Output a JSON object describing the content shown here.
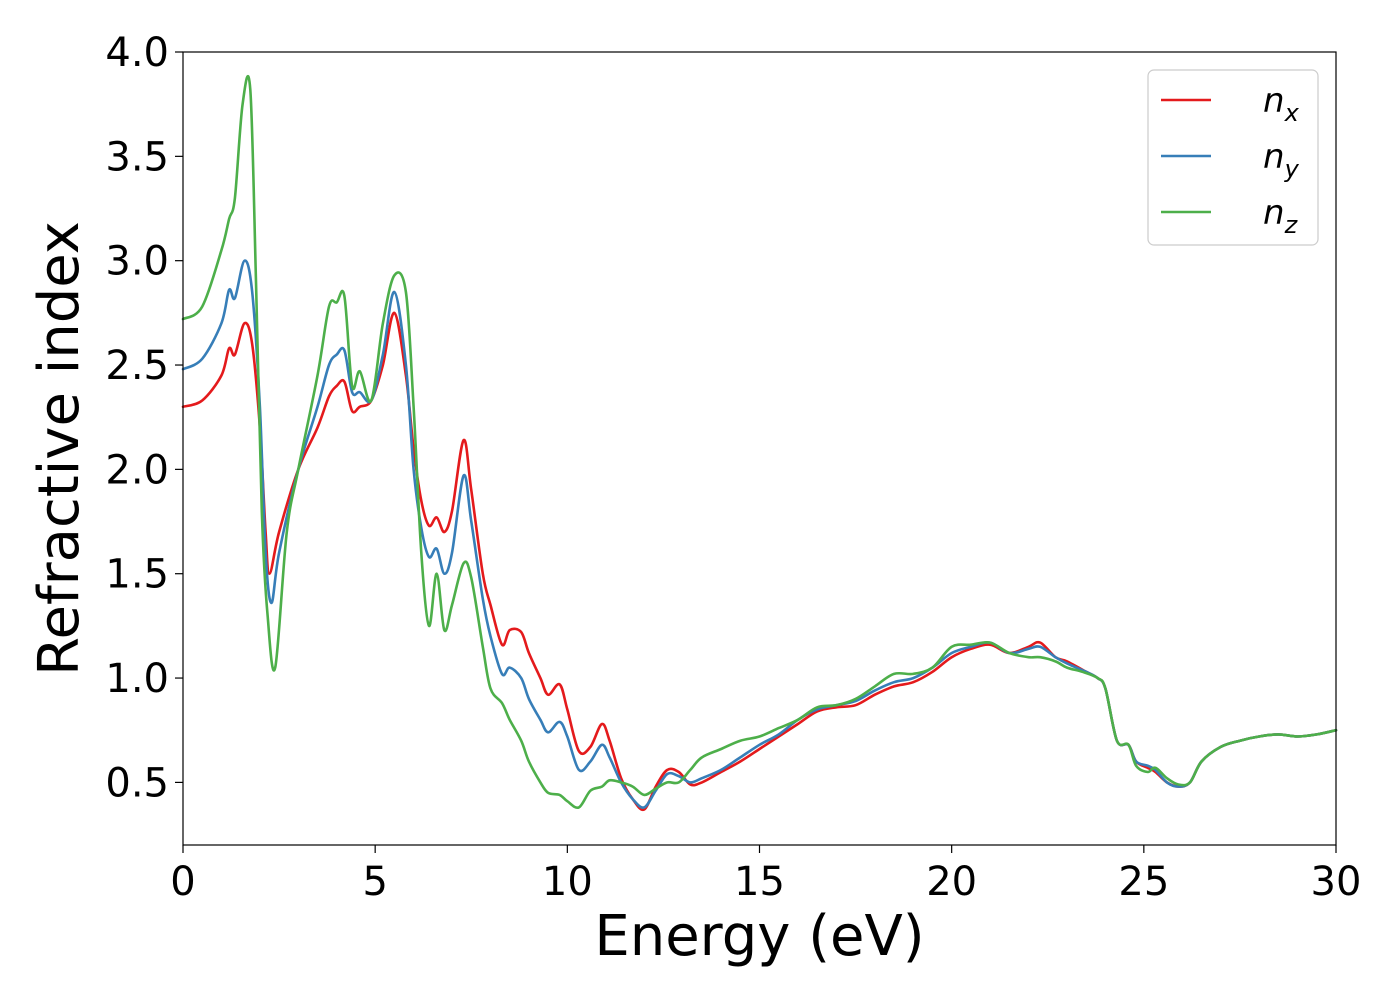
{
  "chart_data": {
    "type": "line",
    "title": "",
    "xlabel": "Energy (eV)",
    "ylabel": "Refractive index",
    "xlim": [
      0,
      30
    ],
    "ylim": [
      0.2,
      4.0
    ],
    "xticks": [
      "0",
      "5",
      "10",
      "15",
      "20",
      "25",
      "30"
    ],
    "yticks": [
      "0.5",
      "1.0",
      "1.5",
      "2.0",
      "2.5",
      "3.0",
      "3.5",
      "4.0"
    ],
    "grid": false,
    "legend_position": "top-right",
    "series": [
      {
        "name": "n",
        "subscript": "x",
        "color": "#e41a1c",
        "x": [
          0,
          0.5,
          1.0,
          1.2,
          1.35,
          1.6,
          1.8,
          2.0,
          2.15,
          2.25,
          2.5,
          3.0,
          3.5,
          3.8,
          4.0,
          4.2,
          4.4,
          4.6,
          4.9,
          5.2,
          5.5,
          5.8,
          6.0,
          6.2,
          6.4,
          6.6,
          6.8,
          7.0,
          7.3,
          7.5,
          7.8,
          8.0,
          8.3,
          8.5,
          8.8,
          9.0,
          9.3,
          9.5,
          9.8,
          10.0,
          10.3,
          10.6,
          10.9,
          11.1,
          11.4,
          11.7,
          12.0,
          12.3,
          12.6,
          12.9,
          13.2,
          13.5,
          14.0,
          14.5,
          15.0,
          15.5,
          16.0,
          16.5,
          17.0,
          17.5,
          18.0,
          18.5,
          19.0,
          19.5,
          20.0,
          20.5,
          21.0,
          21.5,
          22.0,
          22.3,
          22.7,
          23.0,
          23.5,
          23.8,
          24.0,
          24.3,
          24.6,
          24.8,
          25.1,
          25.3,
          25.6,
          25.9,
          26.2,
          26.5,
          27.0,
          27.5,
          28.0,
          28.5,
          29.0,
          29.5,
          30.0
        ],
        "values": [
          2.3,
          2.33,
          2.45,
          2.58,
          2.55,
          2.7,
          2.6,
          2.2,
          1.7,
          1.5,
          1.7,
          2.0,
          2.2,
          2.35,
          2.4,
          2.42,
          2.28,
          2.3,
          2.33,
          2.5,
          2.75,
          2.45,
          2.1,
          1.85,
          1.73,
          1.77,
          1.7,
          1.8,
          2.14,
          1.9,
          1.5,
          1.35,
          1.16,
          1.23,
          1.22,
          1.12,
          1.0,
          0.92,
          0.97,
          0.85,
          0.65,
          0.67,
          0.78,
          0.7,
          0.52,
          0.42,
          0.37,
          0.48,
          0.56,
          0.55,
          0.49,
          0.5,
          0.55,
          0.6,
          0.66,
          0.72,
          0.78,
          0.84,
          0.86,
          0.87,
          0.92,
          0.96,
          0.98,
          1.03,
          1.1,
          1.14,
          1.16,
          1.12,
          1.15,
          1.17,
          1.1,
          1.08,
          1.03,
          1.0,
          0.95,
          0.7,
          0.68,
          0.6,
          0.57,
          0.55,
          0.5,
          0.48,
          0.5,
          0.6,
          0.67,
          0.7,
          0.72,
          0.73,
          0.72,
          0.73,
          0.75
        ]
      },
      {
        "name": "n",
        "subscript": "y",
        "color": "#377eb8",
        "x": [
          0,
          0.5,
          1.0,
          1.2,
          1.35,
          1.6,
          1.8,
          2.0,
          2.15,
          2.3,
          2.5,
          3.0,
          3.5,
          3.8,
          4.0,
          4.2,
          4.4,
          4.6,
          4.9,
          5.2,
          5.5,
          5.8,
          6.0,
          6.2,
          6.4,
          6.6,
          6.8,
          7.0,
          7.3,
          7.5,
          7.8,
          8.0,
          8.3,
          8.5,
          8.8,
          9.0,
          9.3,
          9.5,
          9.8,
          10.0,
          10.3,
          10.6,
          10.9,
          11.1,
          11.4,
          11.7,
          12.0,
          12.3,
          12.6,
          12.9,
          13.2,
          13.5,
          14.0,
          14.5,
          15.0,
          15.5,
          16.0,
          16.5,
          17.0,
          17.5,
          18.0,
          18.5,
          19.0,
          19.5,
          20.0,
          20.5,
          21.0,
          21.5,
          22.0,
          22.3,
          22.7,
          23.0,
          23.5,
          23.8,
          24.0,
          24.3,
          24.6,
          24.8,
          25.1,
          25.3,
          25.6,
          25.9,
          26.2,
          26.5,
          27.0,
          27.5,
          28.0,
          28.5,
          29.0,
          29.5,
          30.0
        ],
        "values": [
          2.48,
          2.53,
          2.7,
          2.86,
          2.82,
          3.0,
          2.85,
          2.3,
          1.6,
          1.36,
          1.6,
          2.0,
          2.3,
          2.5,
          2.55,
          2.57,
          2.37,
          2.37,
          2.33,
          2.55,
          2.85,
          2.5,
          2.0,
          1.72,
          1.58,
          1.62,
          1.5,
          1.6,
          1.97,
          1.75,
          1.38,
          1.2,
          1.02,
          1.05,
          1.0,
          0.9,
          0.8,
          0.74,
          0.79,
          0.72,
          0.56,
          0.6,
          0.68,
          0.62,
          0.5,
          0.42,
          0.38,
          0.46,
          0.54,
          0.53,
          0.5,
          0.52,
          0.56,
          0.62,
          0.68,
          0.73,
          0.8,
          0.85,
          0.87,
          0.89,
          0.94,
          0.98,
          1.0,
          1.05,
          1.12,
          1.15,
          1.17,
          1.12,
          1.14,
          1.15,
          1.1,
          1.07,
          1.03,
          1.0,
          0.95,
          0.7,
          0.68,
          0.6,
          0.58,
          0.56,
          0.5,
          0.48,
          0.5,
          0.6,
          0.67,
          0.7,
          0.72,
          0.73,
          0.72,
          0.73,
          0.75
        ]
      },
      {
        "name": "n",
        "subscript": "z",
        "color": "#4daf4a",
        "x": [
          0,
          0.5,
          1.0,
          1.2,
          1.35,
          1.55,
          1.75,
          1.9,
          2.05,
          2.2,
          2.4,
          2.7,
          3.0,
          3.5,
          3.8,
          4.0,
          4.2,
          4.4,
          4.6,
          4.9,
          5.2,
          5.5,
          5.8,
          6.0,
          6.2,
          6.4,
          6.6,
          6.8,
          7.0,
          7.3,
          7.5,
          7.8,
          8.0,
          8.3,
          8.5,
          8.8,
          9.0,
          9.3,
          9.5,
          9.8,
          10.0,
          10.3,
          10.6,
          10.9,
          11.1,
          11.4,
          11.7,
          12.0,
          12.3,
          12.6,
          12.9,
          13.2,
          13.5,
          14.0,
          14.5,
          15.0,
          15.5,
          16.0,
          16.5,
          17.0,
          17.5,
          18.0,
          18.5,
          19.0,
          19.5,
          20.0,
          20.5,
          21.0,
          21.5,
          22.0,
          22.3,
          22.7,
          23.0,
          23.4,
          23.8,
          24.0,
          24.3,
          24.6,
          24.8,
          25.1,
          25.3,
          25.6,
          25.9,
          26.2,
          26.5,
          27.0,
          27.5,
          28.0,
          28.5,
          29.0,
          29.5,
          30.0
        ],
        "values": [
          2.72,
          2.78,
          3.05,
          3.2,
          3.3,
          3.75,
          3.82,
          2.9,
          1.8,
          1.3,
          1.05,
          1.7,
          2.0,
          2.45,
          2.78,
          2.8,
          2.83,
          2.4,
          2.47,
          2.33,
          2.7,
          2.93,
          2.85,
          2.3,
          1.6,
          1.25,
          1.5,
          1.23,
          1.35,
          1.55,
          1.48,
          1.15,
          0.95,
          0.88,
          0.8,
          0.7,
          0.6,
          0.5,
          0.45,
          0.44,
          0.41,
          0.38,
          0.46,
          0.48,
          0.51,
          0.5,
          0.48,
          0.44,
          0.47,
          0.5,
          0.5,
          0.56,
          0.62,
          0.66,
          0.7,
          0.72,
          0.76,
          0.8,
          0.86,
          0.87,
          0.9,
          0.96,
          1.02,
          1.02,
          1.05,
          1.15,
          1.16,
          1.17,
          1.12,
          1.1,
          1.1,
          1.08,
          1.05,
          1.03,
          1.0,
          0.95,
          0.7,
          0.68,
          0.58,
          0.55,
          0.57,
          0.52,
          0.49,
          0.5,
          0.6,
          0.67,
          0.7,
          0.72,
          0.73,
          0.72,
          0.73,
          0.75
        ]
      }
    ]
  }
}
